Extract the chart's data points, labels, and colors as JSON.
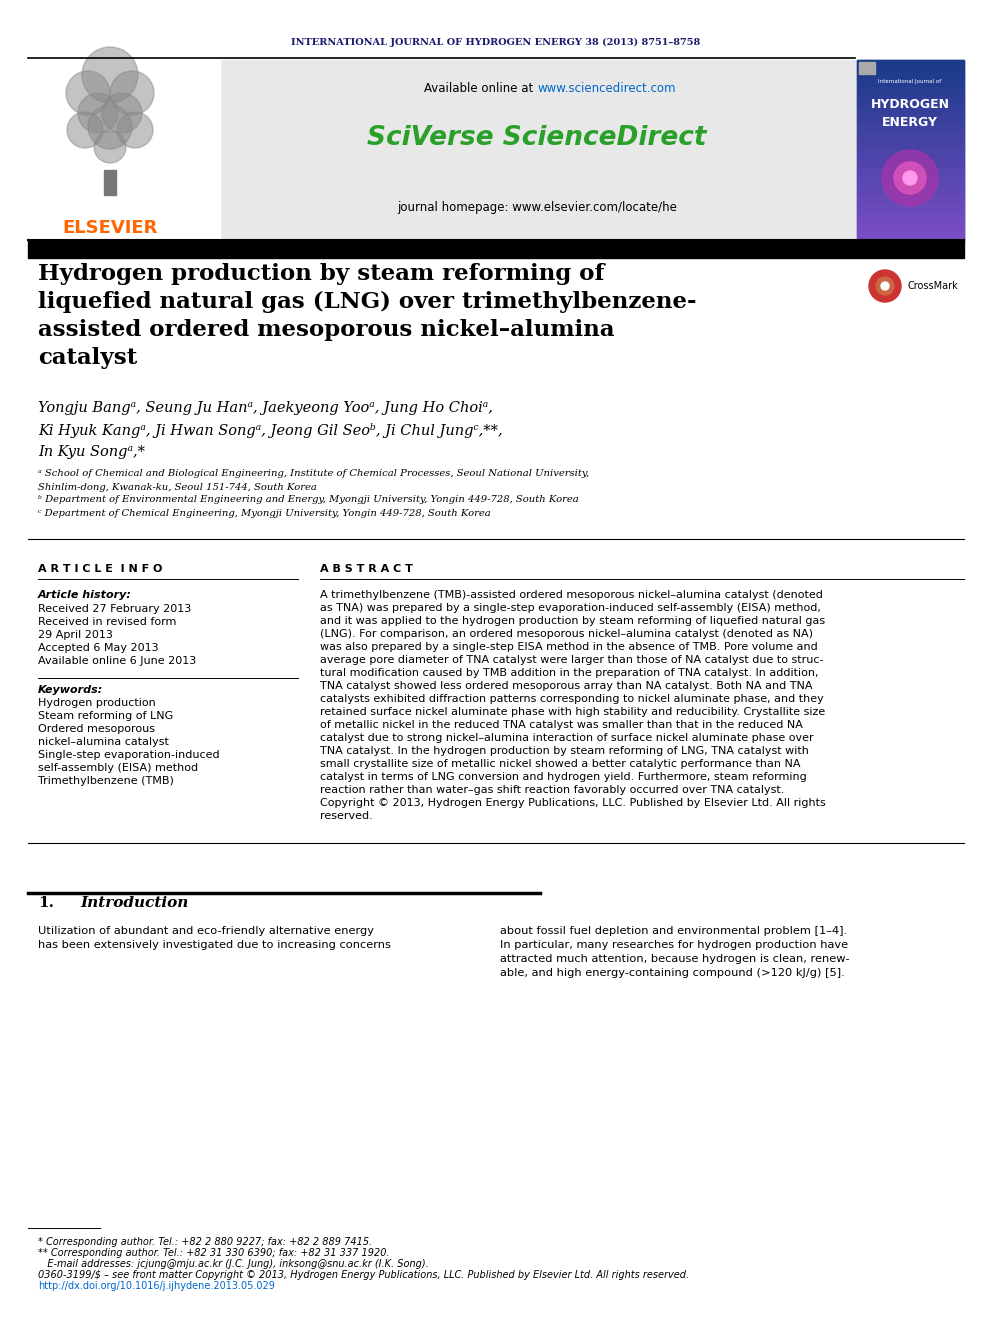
{
  "journal_header": "INTERNATIONAL JOURNAL OF HYDROGEN ENERGY 38 (2013) 8751–8758",
  "journal_header_color": "#1a1a6e",
  "available_online_pre": "Available online at ",
  "url_sciencedirect": "www.sciencedirect.com",
  "url_color": "#0066cc",
  "sciverse_text": "SciVerse ScienceDirect",
  "sciverse_color": "#2aa02a",
  "journal_homepage": "journal homepage: www.elsevier.com/locate/he",
  "elsevier_text": "ELSEVIER",
  "elsevier_color": "#ff6600",
  "title_line1": "Hydrogen production by steam reforming of",
  "title_line2": "liquefied natural gas (LNG) over trimethylbenzene-",
  "title_line3": "assisted ordered mesoporous nickel–alumina",
  "title_line4": "catalyst",
  "author_line1": "Yongju Bangᵃ, Seung Ju Hanᵃ, Jaekyeong Yooᵃ, Jung Ho Choiᵃ,",
  "author_line2": "Ki Hyuk Kangᵃ, Ji Hwan Songᵃ, Jeong Gil Seoᵇ, Ji Chul Jungᶜ,**,",
  "author_line3": "In Kyu Songᵃ,*",
  "affil_a": "ᵃ School of Chemical and Biological Engineering, Institute of Chemical Processes, Seoul National University,",
  "affil_a2": "Shinlim-dong, Kwanak-ku, Seoul 151-744, South Korea",
  "affil_b": "ᵇ Department of Environmental Engineering and Energy, Myongji University, Yongin 449-728, South Korea",
  "affil_c": "ᶜ Department of Chemical Engineering, Myongji University, Yongin 449-728, South Korea",
  "article_info_title": "A R T I C L E  I N F O",
  "abstract_title": "A B S T R A C T",
  "article_history_label": "Article history:",
  "received": "Received 27 February 2013",
  "received_revised": "Received in revised form",
  "received_revised2": "29 April 2013",
  "accepted": "Accepted 6 May 2013",
  "available_online2": "Available online 6 June 2013",
  "keywords_label": "Keywords:",
  "kw1": "Hydrogen production",
  "kw2": "Steam reforming of LNG",
  "kw3": "Ordered mesoporous",
  "kw4": "nickel–alumina catalyst",
  "kw5": "Single-step evaporation-induced",
  "kw6": "self-assembly (EISA) method",
  "kw7": "Trimethylbenzene (TMB)",
  "abstract_lines": [
    "A trimethylbenzene (TMB)-assisted ordered mesoporous nickel–alumina catalyst (denoted",
    "as TNA) was prepared by a single-step evaporation-induced self-assembly (EISA) method,",
    "and it was applied to the hydrogen production by steam reforming of liquefied natural gas",
    "(LNG). For comparison, an ordered mesoporous nickel–alumina catalyst (denoted as NA)",
    "was also prepared by a single-step EISA method in the absence of TMB. Pore volume and",
    "average pore diameter of TNA catalyst were larger than those of NA catalyst due to struc-",
    "tural modification caused by TMB addition in the preparation of TNA catalyst. In addition,",
    "TNA catalyst showed less ordered mesoporous array than NA catalyst. Both NA and TNA",
    "catalysts exhibited diffraction patterns corresponding to nickel aluminate phase, and they",
    "retained surface nickel aluminate phase with high stability and reducibility. Crystallite size",
    "of metallic nickel in the reduced TNA catalyst was smaller than that in the reduced NA",
    "catalyst due to strong nickel–alumina interaction of surface nickel aluminate phase over",
    "TNA catalyst. In the hydrogen production by steam reforming of LNG, TNA catalyst with",
    "small crystallite size of metallic nickel showed a better catalytic performance than NA",
    "catalyst in terms of LNG conversion and hydrogen yield. Furthermore, steam reforming",
    "reaction rather than water–gas shift reaction favorably occurred over TNA catalyst."
  ],
  "copyright_lines": [
    "Copyright © 2013, Hydrogen Energy Publications, LLC. Published by Elsevier Ltd. All rights",
    "reserved."
  ],
  "section1_num": "1.",
  "section1_title": "Introduction",
  "intro_left_lines": [
    "Utilization of abundant and eco-friendly alternative energy",
    "has been extensively investigated due to increasing concerns"
  ],
  "intro_right_lines": [
    "about fossil fuel depletion and environmental problem [1–4].",
    "In particular, many researches for hydrogen production have",
    "attracted much attention, because hydrogen is clean, renew-",
    "able, and high energy-containing compound (>120 kJ/g) [5]."
  ],
  "footnote1": "* Corresponding author. Tel.: +82 2 880 9227; fax: +82 2 889 7415.",
  "footnote2": "** Corresponding author. Tel.: +82 31 330 6390; fax: +82 31 337 1920.",
  "footnote3": "   E-mail addresses: jcjung@mju.ac.kr (J.C. Jung), inksong@snu.ac.kr (I.K. Song).",
  "footnote4": "0360-3199/$ – see front matter Copyright © 2013, Hydrogen Energy Publications, LLC. Published by Elsevier Ltd. All rights reserved.",
  "doi": "http://dx.doi.org/10.1016/j.ijhydene.2013.05.029",
  "doi_color": "#0066cc",
  "white": "#ffffff",
  "black": "#000000",
  "light_gray": "#e8e8e8",
  "dark_navy": "#1a1a6e",
  "cover_bg": "#1a237e",
  "cover_grad": "#6633aa"
}
